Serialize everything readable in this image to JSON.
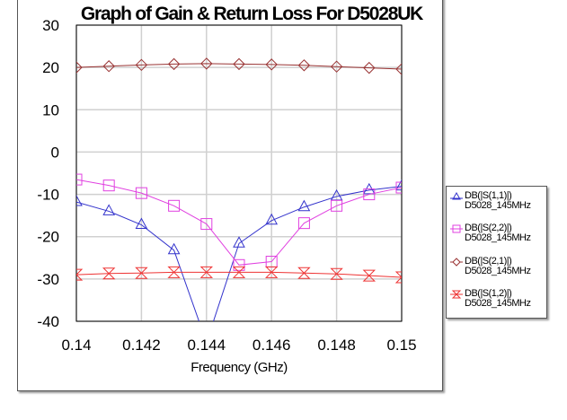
{
  "chart_data": {
    "type": "line",
    "title": "Graph of  Gain & Return Loss For D5028UK",
    "xlabel": "Frequency (GHz)",
    "ylabel": "",
    "xlim": [
      0.14,
      0.15
    ],
    "ylim": [
      -40,
      30
    ],
    "grid": true,
    "legend_position": "right",
    "x_ticks": [
      "0.14",
      "0.142",
      "0.144",
      "0.146",
      "0.148",
      "0.15"
    ],
    "y_ticks": [
      "30",
      "20",
      "10",
      "0",
      "-10",
      "-20",
      "-30",
      "-40"
    ],
    "x": [
      0.14,
      0.141,
      0.142,
      0.143,
      0.144,
      0.145,
      0.146,
      0.147,
      0.148,
      0.149,
      0.15
    ],
    "series": [
      {
        "name": "DB(|S(1,1)|)",
        "sub": "D5028_145MHz",
        "color": "#3333cc",
        "marker": "triangle",
        "values": [
          -11.8,
          -14.0,
          -17.2,
          -23.2,
          -45.0,
          -21.6,
          -16.2,
          -13.0,
          -10.5,
          -9.0,
          -8.1
        ]
      },
      {
        "name": "DB(|S(2,2)|)",
        "sub": "D5028_145MHz",
        "color": "#e040e0",
        "marker": "square",
        "values": [
          -6.5,
          -7.9,
          -9.7,
          -12.7,
          -17.0,
          -26.7,
          -25.9,
          -16.8,
          -12.7,
          -10.0,
          -8.4
        ]
      },
      {
        "name": "DB(|S(2,1)|)",
        "sub": "D5028_145MHz",
        "color": "#993333",
        "marker": "diamond",
        "values": [
          20.0,
          20.3,
          20.6,
          20.8,
          20.9,
          20.8,
          20.7,
          20.5,
          20.2,
          19.9,
          19.6
        ]
      },
      {
        "name": "DB(|S(1,2)|)",
        "sub": "D5028_145MHz",
        "color": "#ee3333",
        "marker": "hourglass",
        "values": [
          -29.0,
          -28.7,
          -28.6,
          -28.4,
          -28.4,
          -28.4,
          -28.4,
          -28.6,
          -28.8,
          -29.2,
          -29.6
        ]
      }
    ]
  },
  "legend": [
    {
      "label": "DB(|S(1,1)|)",
      "sub": "D5028_145MHz"
    },
    {
      "label": "DB(|S(2,2)|)",
      "sub": "D5028_145MHz"
    },
    {
      "label": "DB(|S(2,1)|)",
      "sub": "D5028_145MHz"
    },
    {
      "label": "DB(|S(1,2)|)",
      "sub": "D5028_145MHz"
    }
  ]
}
